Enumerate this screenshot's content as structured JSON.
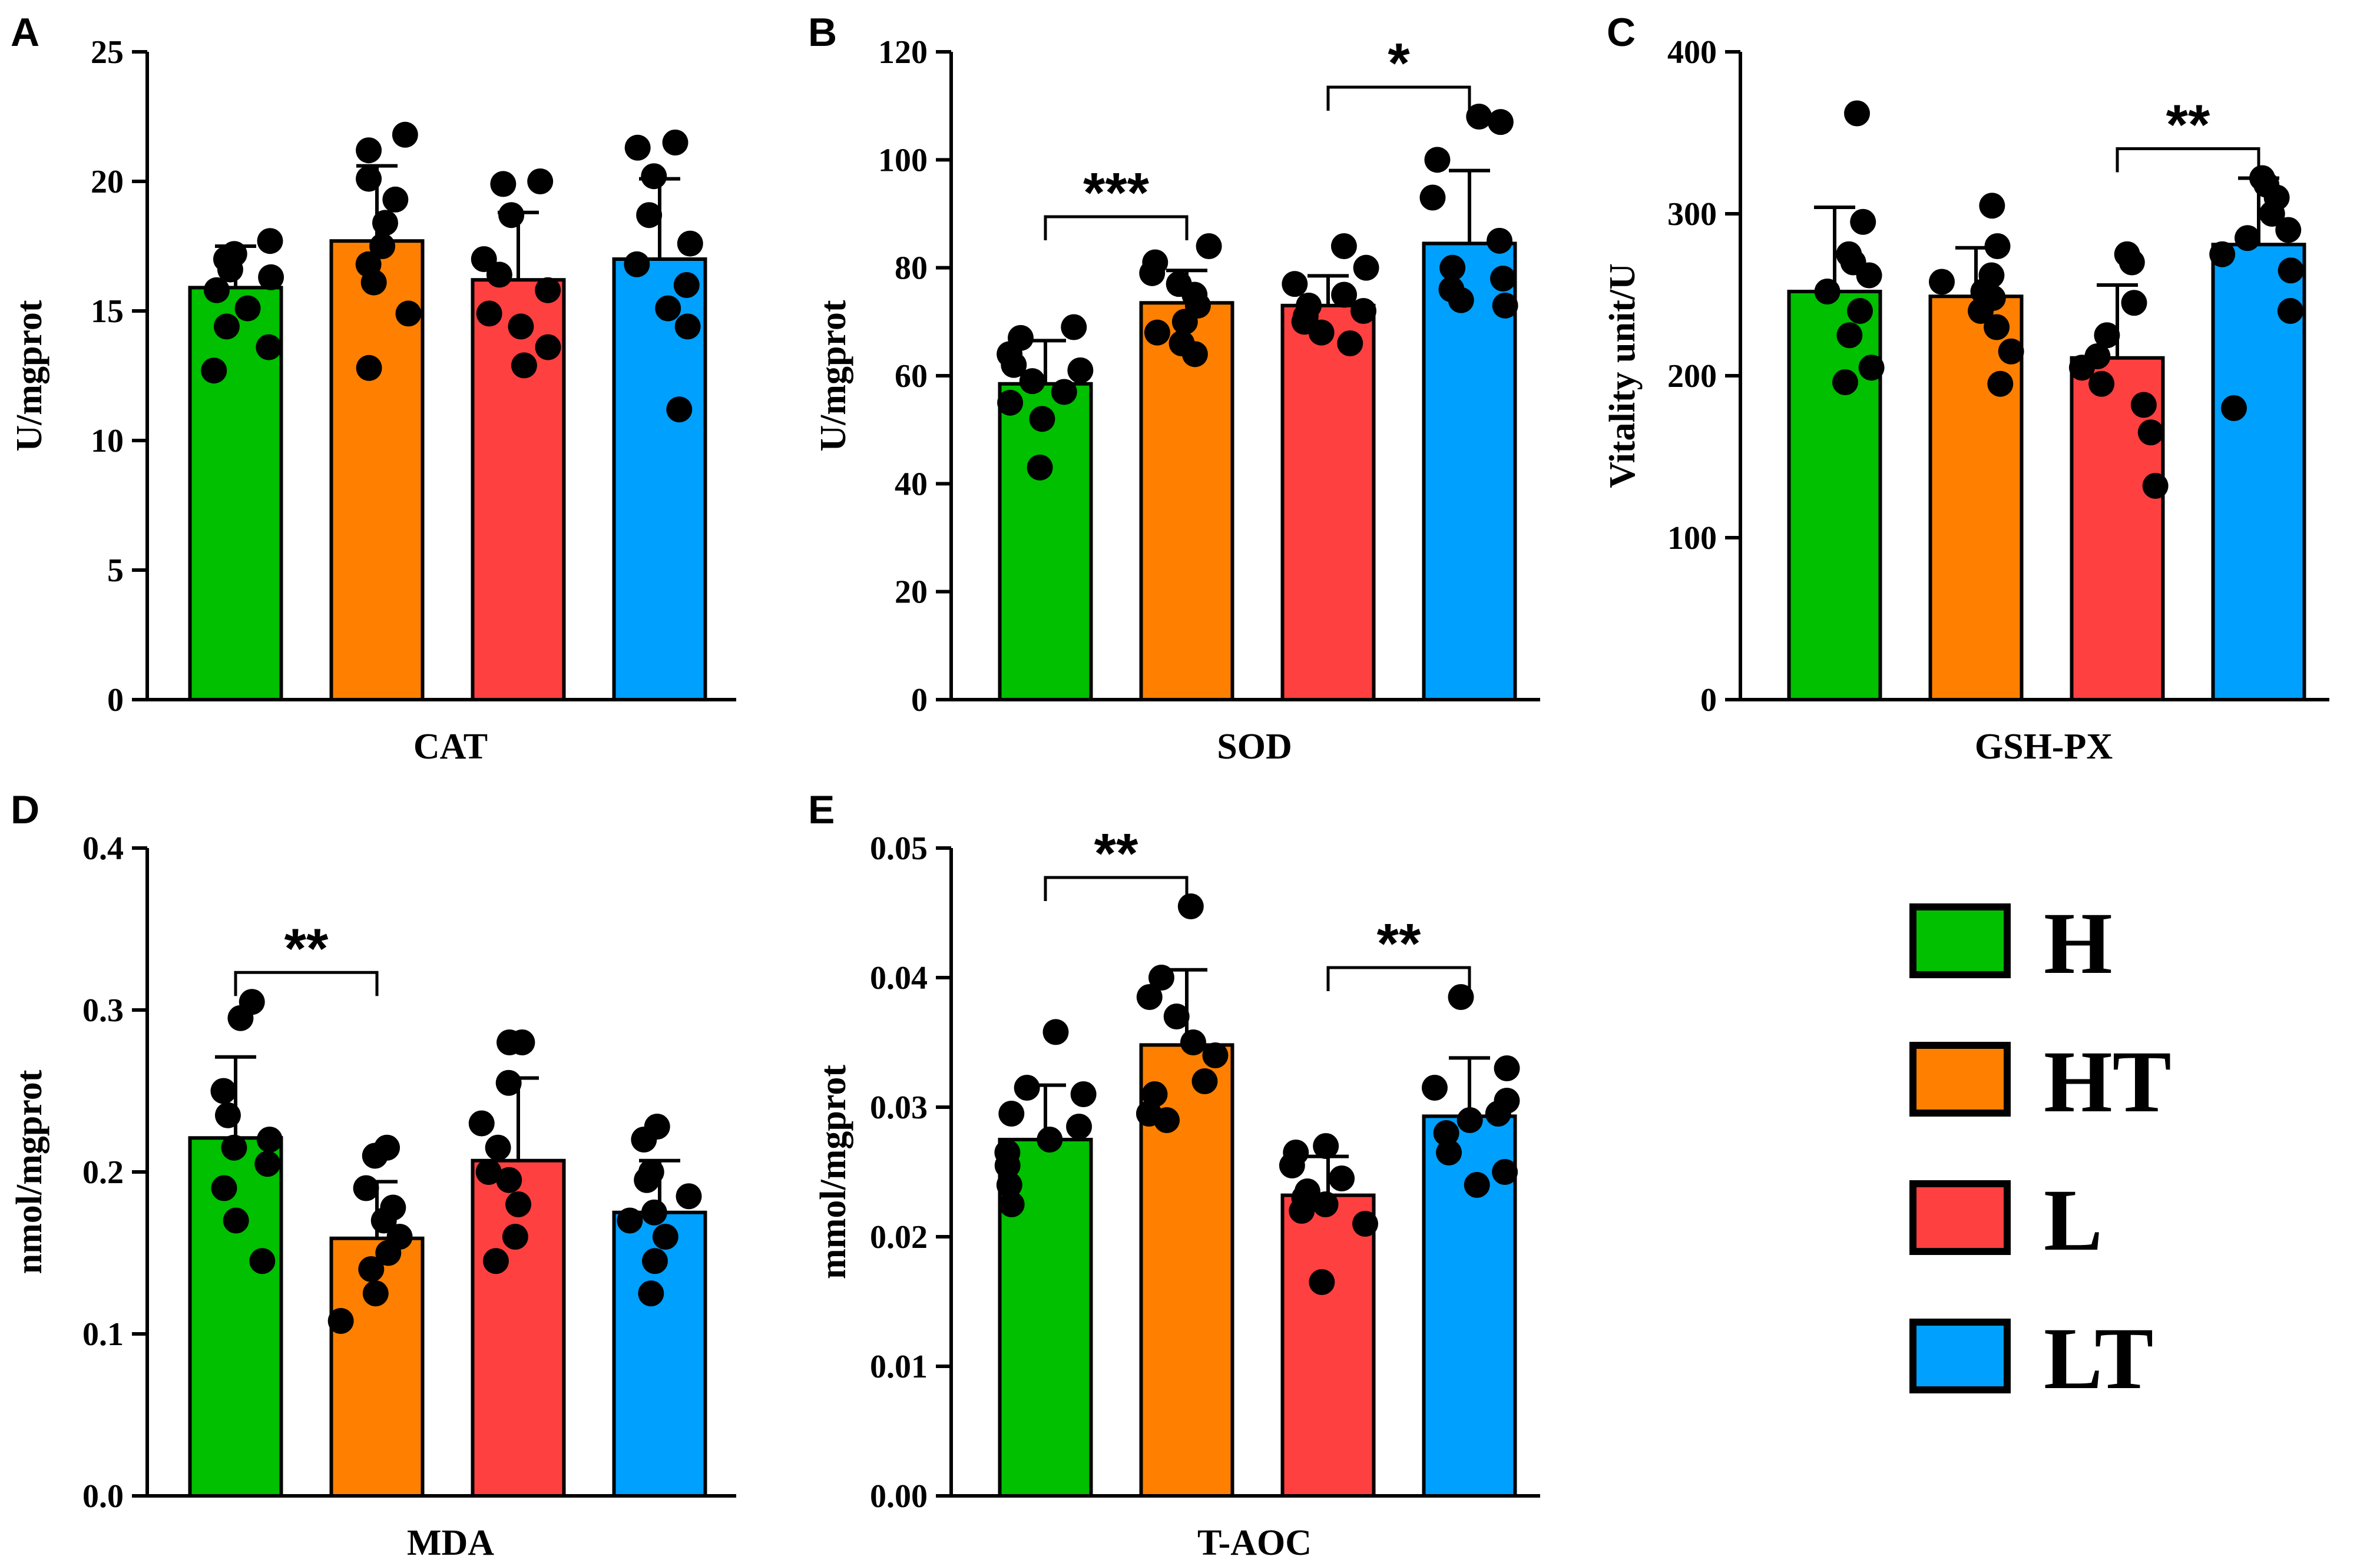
{
  "colors": {
    "H": "#00c000",
    "HT": "#ff8000",
    "L": "#ff4040",
    "LT": "#00a0ff"
  },
  "legend": {
    "items": [
      {
        "key": "H",
        "label": "H"
      },
      {
        "key": "HT",
        "label": "HT"
      },
      {
        "key": "L",
        "label": "L"
      },
      {
        "key": "LT",
        "label": "LT"
      }
    ]
  },
  "chart_data": [
    {
      "type": "bar",
      "panel": "A",
      "xlabel": "CAT",
      "ylabel": "U/mgprot",
      "ylim": [
        0,
        25
      ],
      "yticks": [
        0,
        5,
        10,
        15,
        20,
        25
      ],
      "categories": [
        "H",
        "HT",
        "L",
        "LT"
      ],
      "values": [
        15.9,
        17.7,
        16.2,
        17.0
      ],
      "sd": [
        1.6,
        2.9,
        2.6,
        3.1
      ],
      "points": [
        [
          12.7,
          13.6,
          14.4,
          15.1,
          15.8,
          16.3,
          16.6,
          17.0,
          17.2,
          17.7
        ],
        [
          12.8,
          14.9,
          16.1,
          16.8,
          17.5,
          18.4,
          19.3,
          20.1,
          21.2,
          21.8
        ],
        [
          12.9,
          13.6,
          14.4,
          14.9,
          15.8,
          16.4,
          17.0,
          18.7,
          19.9,
          20.0
        ],
        [
          11.2,
          14.4,
          15.1,
          16.0,
          16.8,
          17.6,
          18.7,
          20.2,
          21.3,
          21.5
        ]
      ],
      "significance": []
    },
    {
      "type": "bar",
      "panel": "B",
      "xlabel": "SOD",
      "ylabel": "U/mgprot",
      "ylim": [
        0,
        120
      ],
      "yticks": [
        0,
        20,
        40,
        60,
        80,
        100,
        120
      ],
      "categories": [
        "H",
        "HT",
        "L",
        "LT"
      ],
      "values": [
        58.5,
        73.5,
        73.0,
        84.5
      ],
      "sd": [
        8.0,
        6.0,
        5.5,
        13.5
      ],
      "points": [
        [
          43.0,
          52.0,
          55.0,
          57.0,
          59.0,
          61.0,
          62.0,
          64.0,
          67.0,
          69.0
        ],
        [
          64.0,
          66.0,
          68.0,
          70.0,
          73.0,
          75.0,
          77.0,
          79.0,
          81.0,
          84.0
        ],
        [
          66.0,
          68.0,
          70.0,
          71.0,
          72.0,
          73.0,
          75.0,
          77.0,
          80.0,
          84.0
        ],
        [
          73.0,
          74.0,
          76.0,
          78.0,
          80.0,
          85.0,
          93.0,
          100.0,
          107.0,
          108.0
        ]
      ],
      "significance": [
        {
          "from": 0,
          "to": 1,
          "label": "***"
        },
        {
          "from": 2,
          "to": 3,
          "label": "*"
        }
      ]
    },
    {
      "type": "bar",
      "panel": "C",
      "xlabel": "GSH-PX",
      "ylabel": "Vitality unit/U",
      "ylim": [
        0,
        400
      ],
      "yticks": [
        0,
        100,
        200,
        300,
        400
      ],
      "categories": [
        "H",
        "HT",
        "L",
        "LT"
      ],
      "values": [
        252,
        249,
        211,
        281
      ],
      "sd": [
        52,
        30,
        45,
        41
      ],
      "points": [
        [
          196,
          205,
          225,
          240,
          252,
          262,
          270,
          275,
          295,
          362
        ],
        [
          195,
          215,
          230,
          240,
          248,
          252,
          258,
          262,
          280,
          305
        ],
        [
          132,
          165,
          182,
          195,
          205,
          212,
          225,
          245,
          270,
          275
        ],
        [
          180,
          240,
          265,
          275,
          285,
          290,
          300,
          310,
          318,
          322
        ]
      ],
      "significance": [
        {
          "from": 2,
          "to": 3,
          "label": "**"
        }
      ]
    },
    {
      "type": "bar",
      "panel": "D",
      "xlabel": "MDA",
      "ylabel": "nmol/mgprot",
      "ylim": [
        0,
        0.4
      ],
      "yticks": [
        0.0,
        0.1,
        0.2,
        0.3,
        0.4
      ],
      "categories": [
        "H",
        "HT",
        "L",
        "LT"
      ],
      "values": [
        0.221,
        0.159,
        0.207,
        0.175
      ],
      "sd": [
        0.05,
        0.035,
        0.051,
        0.032
      ],
      "points": [
        [
          0.145,
          0.17,
          0.19,
          0.205,
          0.215,
          0.22,
          0.235,
          0.25,
          0.295,
          0.305
        ],
        [
          0.108,
          0.125,
          0.14,
          0.15,
          0.16,
          0.17,
          0.178,
          0.19,
          0.21,
          0.215
        ],
        [
          0.145,
          0.16,
          0.18,
          0.195,
          0.2,
          0.215,
          0.23,
          0.255,
          0.28,
          0.28
        ],
        [
          0.125,
          0.145,
          0.16,
          0.17,
          0.175,
          0.185,
          0.195,
          0.2,
          0.22,
          0.228
        ]
      ],
      "significance": [
        {
          "from": 0,
          "to": 1,
          "label": "**"
        }
      ]
    },
    {
      "type": "bar",
      "panel": "E",
      "xlabel": "T-AOC",
      "ylabel": "mmol/mgprot",
      "ylim": [
        0,
        0.05
      ],
      "yticks": [
        0.0,
        0.01,
        0.02,
        0.03,
        0.04,
        0.05
      ],
      "categories": [
        "H",
        "HT",
        "L",
        "LT"
      ],
      "values": [
        0.0275,
        0.0348,
        0.0232,
        0.0293
      ],
      "sd": [
        0.0042,
        0.0058,
        0.003,
        0.0045
      ],
      "points": [
        [
          0.0225,
          0.024,
          0.0255,
          0.0265,
          0.0275,
          0.0285,
          0.0295,
          0.031,
          0.0315,
          0.0358
        ],
        [
          0.029,
          0.0295,
          0.031,
          0.032,
          0.034,
          0.035,
          0.037,
          0.0385,
          0.04,
          0.0455
        ],
        [
          0.0165,
          0.021,
          0.022,
          0.0225,
          0.023,
          0.0235,
          0.0245,
          0.0255,
          0.0265,
          0.027
        ],
        [
          0.024,
          0.025,
          0.0265,
          0.028,
          0.029,
          0.0295,
          0.0305,
          0.0315,
          0.033,
          0.0385
        ]
      ],
      "significance": [
        {
          "from": 0,
          "to": 1,
          "label": "**"
        },
        {
          "from": 2,
          "to": 3,
          "label": "**"
        }
      ]
    }
  ]
}
